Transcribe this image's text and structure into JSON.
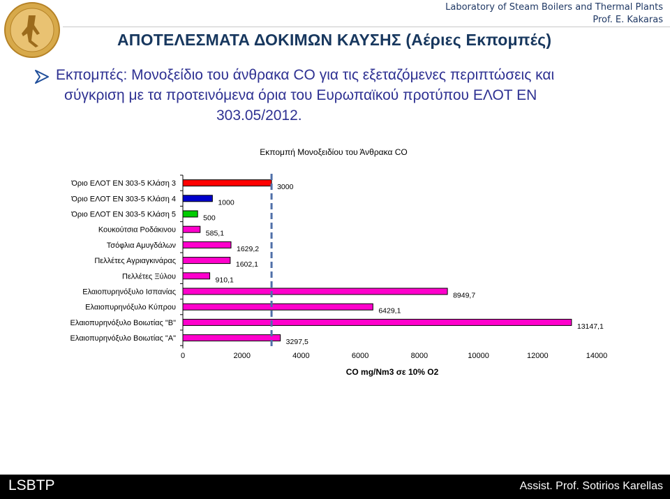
{
  "header": {
    "lab_line1": "Laboratory of Steam Boilers and Thermal Plants",
    "lab_line2": "Prof. E. Kakaras",
    "title": "ΑΠΟΤΕΛΕΣΜΑΤΑ ΔΟΚΙΜΩΝ ΚΑΥΣΗΣ (Αέριες Εκπομπές)"
  },
  "bullet": {
    "line1": "Εκπομπές: Μονοξείδιο του άνθρακα CO για τις εξεταζόμενες περιπτώσεις και",
    "line2": "σύγκριση με τα προτεινόμενα όρια του Ευρωπαϊκού προτύπου ΕΛΟΤ ΕΝ",
    "line3": "303.05/2012."
  },
  "chart_data": {
    "type": "bar",
    "orientation": "horizontal",
    "title": "Εκπομπή Μονοξειδίου του Άνθρακα CO",
    "xlabel": "CO mg/Nm3 σε 10% O2",
    "xlim": [
      0,
      14000
    ],
    "xticks": [
      "0",
      "2000",
      "4000",
      "6000",
      "8000",
      "10000",
      "12000",
      "14000"
    ],
    "reference_line": 3000,
    "categories": [
      "Όριο ΕΛΟΤ ΕΝ 303-5 Κλάση 3",
      "Όριο ΕΛΟΤ ΕΝ 303-5 Κλάση 4",
      "Όριο ΕΛΟΤ ΕΝ 303-5 Κλάση 5",
      "Κουκούτσια Ροδάκινου",
      "Τσόφλια Αμυγδάλων",
      "Πελλέτες Αγριαγκινάρας",
      "Πελλέτες Ξύλου",
      "Ελαιοπυρηνόξυλο Ισπανίας",
      "Ελαιοπυρηνόξυλο Κύπρου",
      "Ελαιοπυρηνόξυλο Βοιωτίας \"Β\"",
      "Ελαιοπυρηνόξυλο Βοιωτίας \"Α\""
    ],
    "values": [
      3000,
      1000,
      500,
      585.1,
      1629.2,
      1602.1,
      910.1,
      8949.7,
      6429.1,
      13147.1,
      3297.5
    ],
    "value_labels": [
      "3000",
      "1000",
      "500",
      "585,1",
      "1629,2",
      "1602,1",
      "910,1",
      "8949,7",
      "6429,1",
      "13147,1",
      "3297,5"
    ],
    "colors": [
      "#ff0000",
      "#0000cc",
      "#00cc00",
      "#ff00cc",
      "#ff00cc",
      "#ff00cc",
      "#ff00cc",
      "#ff00cc",
      "#ff00cc",
      "#ff00cc",
      "#ff00cc"
    ],
    "reference_line_color": "#4f6fa8"
  },
  "footer": {
    "left": "LSBTP",
    "right": "Assist. Prof. Sotirios Karellas"
  }
}
